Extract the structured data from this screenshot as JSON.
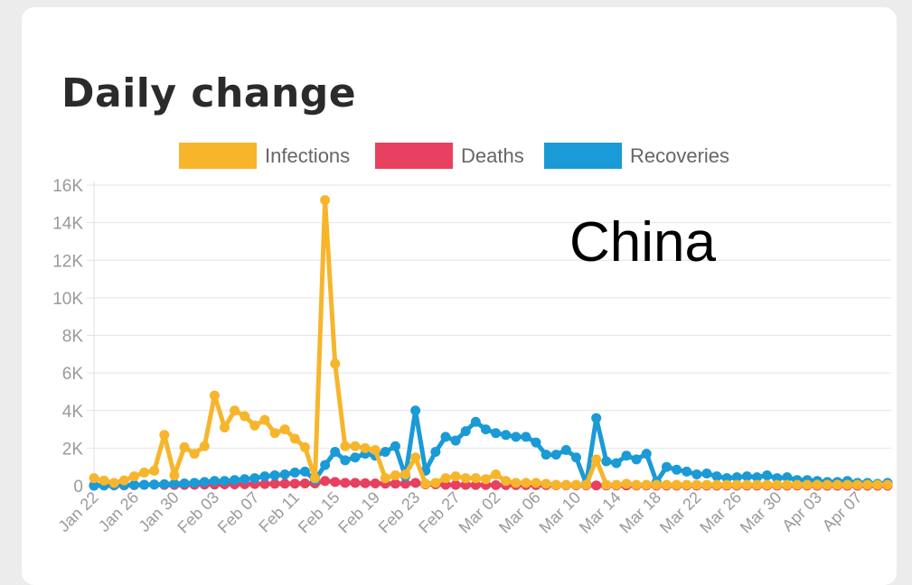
{
  "card": {
    "title": "Daily change"
  },
  "chart_data": {
    "type": "line",
    "annotation": "China",
    "legend_position": "top",
    "grid": true,
    "ylim": [
      0,
      16000
    ],
    "y_ticks": [
      {
        "value": 0,
        "label": "0"
      },
      {
        "value": 2000,
        "label": "2K"
      },
      {
        "value": 4000,
        "label": "4K"
      },
      {
        "value": 6000,
        "label": "6K"
      },
      {
        "value": 8000,
        "label": "8K"
      },
      {
        "value": 10000,
        "label": "10K"
      },
      {
        "value": 12000,
        "label": "12K"
      },
      {
        "value": 14000,
        "label": "14K"
      },
      {
        "value": 16000,
        "label": "16K"
      }
    ],
    "x": [
      "Jan 22",
      "Jan 23",
      "Jan 24",
      "Jan 25",
      "Jan 26",
      "Jan 27",
      "Jan 28",
      "Jan 29",
      "Jan 30",
      "Jan 31",
      "Feb 01",
      "Feb 02",
      "Feb 03",
      "Feb 04",
      "Feb 05",
      "Feb 06",
      "Feb 07",
      "Feb 08",
      "Feb 09",
      "Feb 10",
      "Feb 11",
      "Feb 12",
      "Feb 13",
      "Feb 14",
      "Feb 15",
      "Feb 16",
      "Feb 17",
      "Feb 18",
      "Feb 19",
      "Feb 20",
      "Feb 21",
      "Feb 22",
      "Feb 23",
      "Feb 24",
      "Feb 25",
      "Feb 26",
      "Feb 27",
      "Feb 28",
      "Feb 29",
      "Mar 01",
      "Mar 02",
      "Mar 03",
      "Mar 04",
      "Mar 05",
      "Mar 06",
      "Mar 07",
      "Mar 08",
      "Mar 09",
      "Mar 10",
      "Mar 11",
      "Mar 12",
      "Mar 13",
      "Mar 14",
      "Mar 15",
      "Mar 16",
      "Mar 17",
      "Mar 18",
      "Mar 19",
      "Mar 20",
      "Mar 21",
      "Mar 22",
      "Mar 23",
      "Mar 24",
      "Mar 25",
      "Mar 26",
      "Mar 27",
      "Mar 28",
      "Mar 29",
      "Mar 30",
      "Mar 31",
      "Apr 01",
      "Apr 02",
      "Apr 03",
      "Apr 04",
      "Apr 05",
      "Apr 06",
      "Apr 07",
      "Apr 08",
      "Apr 09",
      "Apr 10"
    ],
    "x_tick_labels": [
      "Jan 22",
      "Jan 26",
      "Jan 30",
      "Feb 03",
      "Feb 07",
      "Feb 11",
      "Feb 15",
      "Feb 19",
      "Feb 23",
      "Feb 27",
      "Mar 02",
      "Mar 06",
      "Mar 10",
      "Mar 14",
      "Mar 18",
      "Mar 22",
      "Mar 26",
      "Mar 30",
      "Apr 03",
      "Apr 07"
    ],
    "series": [
      {
        "name": "Infections",
        "color": "#f7b52c",
        "values": [
          400,
          270,
          150,
          280,
          500,
          700,
          800,
          2700,
          550,
          2050,
          1700,
          2100,
          4800,
          3100,
          4000,
          3700,
          3200,
          3500,
          2800,
          3000,
          2500,
          2050,
          400,
          15200,
          6500,
          2100,
          2100,
          2000,
          1900,
          400,
          550,
          600,
          1500,
          100,
          150,
          400,
          500,
          400,
          400,
          350,
          600,
          250,
          150,
          150,
          150,
          100,
          50,
          50,
          50,
          50,
          1400,
          50,
          50,
          100,
          50,
          50,
          50,
          50,
          50,
          50,
          50,
          50,
          50,
          50,
          50,
          50,
          50,
          50,
          50,
          50,
          50,
          50,
          50,
          50,
          50,
          50,
          50,
          50,
          50,
          50
        ]
      },
      {
        "name": "Deaths",
        "color": "#e8405f",
        "values": [
          20,
          20,
          20,
          20,
          30,
          50,
          60,
          40,
          40,
          40,
          50,
          60,
          60,
          70,
          70,
          80,
          90,
          90,
          100,
          110,
          110,
          120,
          120,
          250,
          200,
          150,
          150,
          130,
          120,
          110,
          110,
          100,
          150,
          70,
          70,
          50,
          40,
          40,
          35,
          35,
          30,
          30,
          30,
          30,
          30,
          30,
          25,
          25,
          20,
          20,
          15,
          15,
          10,
          10,
          10,
          10,
          8,
          8,
          7,
          7,
          6,
          6,
          6,
          6,
          5,
          5,
          5,
          4,
          4,
          4,
          4,
          4,
          3,
          3,
          3,
          3,
          3,
          2,
          2,
          2
        ]
      },
      {
        "name": "Recoveries",
        "color": "#1a9ad6",
        "values": [
          0,
          10,
          20,
          30,
          40,
          50,
          60,
          80,
          100,
          120,
          150,
          200,
          250,
          250,
          300,
          350,
          400,
          500,
          550,
          600,
          700,
          750,
          300,
          1100,
          1800,
          1350,
          1500,
          1700,
          1600,
          1800,
          2100,
          500,
          4000,
          800,
          1800,
          2600,
          2400,
          2900,
          3400,
          3000,
          2800,
          2700,
          2600,
          2600,
          2300,
          1650,
          1650,
          1900,
          1500,
          100,
          3600,
          1300,
          1200,
          1600,
          1400,
          1700,
          200,
          1000,
          850,
          750,
          600,
          650,
          500,
          400,
          450,
          500,
          450,
          550,
          400,
          450,
          300,
          300,
          250,
          200,
          200,
          250,
          150,
          150,
          100,
          150
        ]
      }
    ]
  }
}
